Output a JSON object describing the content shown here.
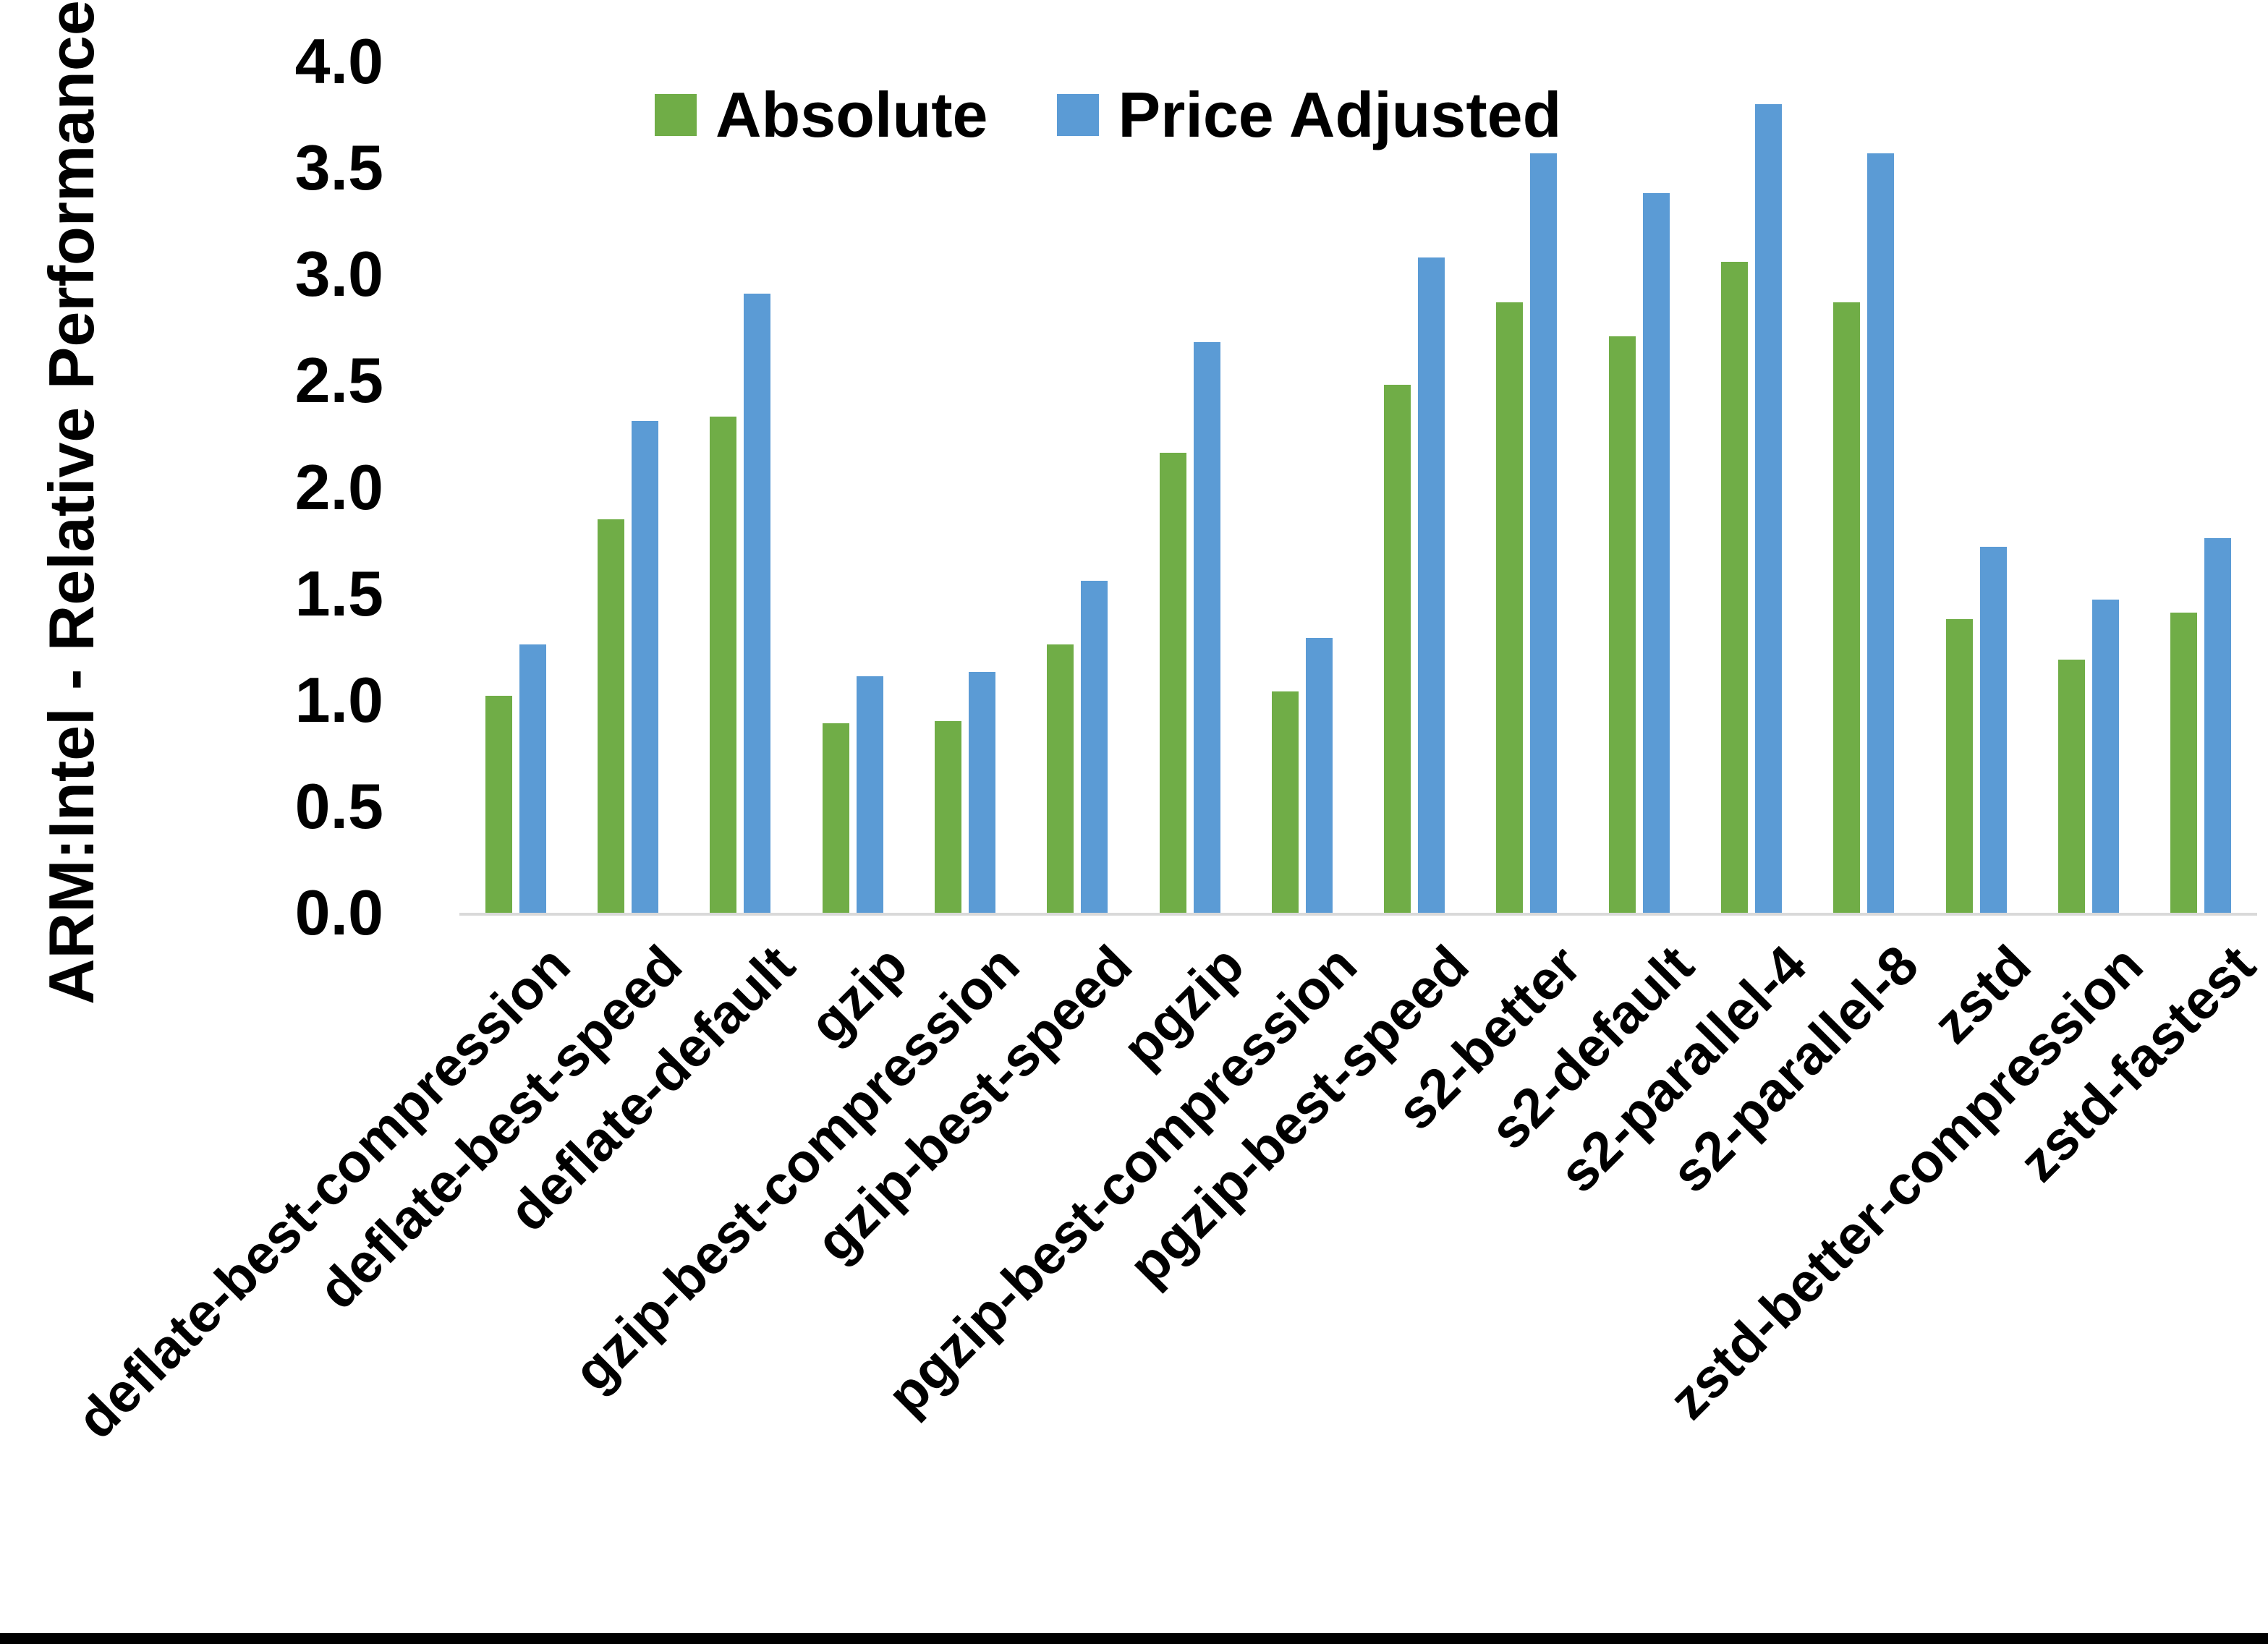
{
  "chart_data": {
    "type": "bar",
    "title": "",
    "xlabel": "",
    "ylabel": "ARM:Intel - Relative Performance",
    "ylim": [
      0.0,
      4.0
    ],
    "ytick_step": 0.5,
    "y_ticks": [
      "0.0",
      "0.5",
      "1.0",
      "1.5",
      "2.0",
      "2.5",
      "3.0",
      "3.5",
      "4.0"
    ],
    "grid": false,
    "legend_position": "top-center",
    "categories": [
      "deflate-best-compression",
      "deflate-best-speed",
      "deflate-default",
      "gzip",
      "gzip-best-compression",
      "gzip-best-speed",
      "pgzip",
      "pgzip-best-compression",
      "pgzip-best-speed",
      "s2-better",
      "s2-default",
      "s2-parallel-4",
      "s2-parallel-8",
      "zstd",
      "zstd-better-compression",
      "zstd-fastest"
    ],
    "series": [
      {
        "name": "Absolute",
        "color": "#70AD47",
        "values": [
          1.02,
          1.85,
          2.33,
          0.89,
          0.9,
          1.26,
          2.16,
          1.04,
          2.48,
          2.87,
          2.71,
          3.06,
          2.87,
          1.38,
          1.19,
          1.41
        ]
      },
      {
        "name": "Price Adjusted",
        "color": "#5B9BD5",
        "values": [
          1.26,
          2.31,
          2.91,
          1.11,
          1.13,
          1.56,
          2.68,
          1.29,
          3.08,
          3.57,
          3.38,
          3.8,
          3.57,
          1.72,
          1.47,
          1.76
        ]
      }
    ]
  },
  "colors": {
    "axis_line": "#d9d9d9",
    "text": "#000000",
    "background": "#ffffff"
  }
}
